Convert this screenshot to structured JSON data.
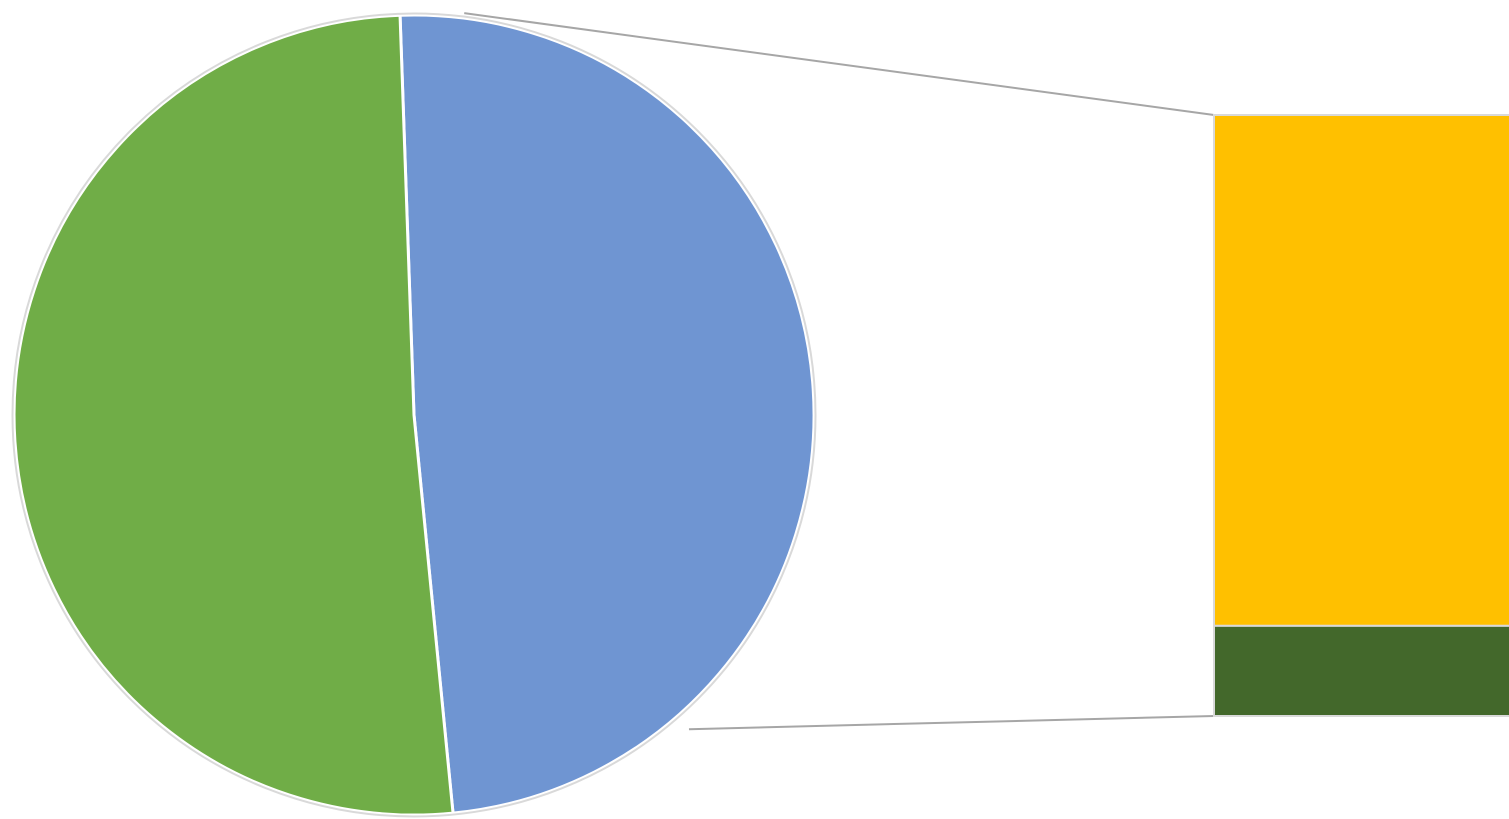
{
  "chart_data": {
    "type": "bar-of-pie",
    "title": "",
    "pie": {
      "slices": [
        {
          "value": 49.0,
          "color": "#6f95d2"
        },
        {
          "value": 51.0,
          "color": "#70ad47"
        }
      ],
      "start_angle_deg": -2,
      "exploded_slice_index": 0
    },
    "bar": {
      "segments": [
        {
          "value": 85.0,
          "color": "#ffc000"
        },
        {
          "value": 15.0,
          "color": "#43682b"
        }
      ]
    },
    "legend": "none",
    "data_labels": false,
    "colors": {
      "connector": "#a6a6a6",
      "outline": "#d9d9d9",
      "slice_border": "#ffffff"
    }
  }
}
